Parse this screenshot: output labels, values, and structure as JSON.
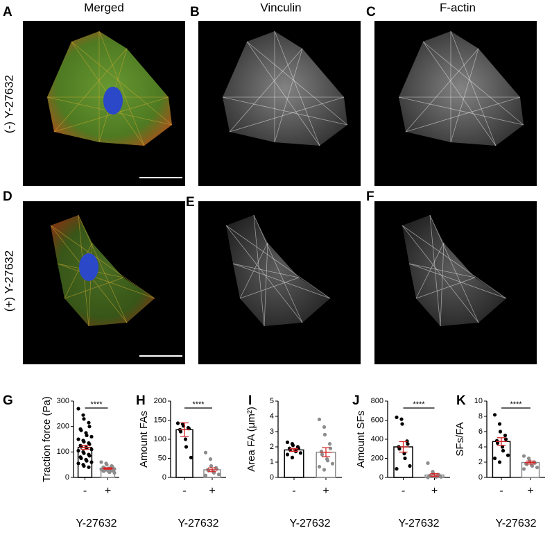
{
  "panels": {
    "letters": [
      "A",
      "B",
      "C",
      "D",
      "E",
      "F",
      "G",
      "H",
      "I",
      "J",
      "K"
    ],
    "columns": [
      "Merged",
      "Vinculin",
      "F-actin"
    ],
    "rows": [
      "(-) Y-27632",
      "(+) Y-27632"
    ]
  },
  "chart_data": [
    {
      "type": "bar",
      "ylabel": "Traction force (Pa)",
      "xlabel": "Y-27632",
      "categories": [
        "-",
        "+"
      ],
      "values": [
        118,
        35
      ],
      "error": [
        8,
        3
      ],
      "annotation": "****",
      "points": [
        [
          270,
          245,
          230,
          215,
          200,
          190,
          185,
          175,
          165,
          160,
          150,
          145,
          140,
          135,
          130,
          125,
          120,
          118,
          115,
          110,
          105,
          100,
          95,
          90,
          85,
          80,
          75,
          70,
          65,
          60,
          55,
          50,
          45,
          40
        ],
        [
          60,
          55,
          50,
          45,
          42,
          40,
          38,
          36,
          35,
          33,
          32,
          30,
          30,
          28,
          27,
          25,
          25,
          22,
          20,
          18
        ]
      ],
      "colors": [
        "#000000",
        "#8c8c8c"
      ],
      "error_color": "#d62728",
      "ylim": [
        0,
        300
      ],
      "yticks": [
        0,
        100,
        200,
        300
      ]
    },
    {
      "type": "bar",
      "ylabel": "Amount FAs",
      "xlabel": "Y-27632",
      "categories": [
        "-",
        "+"
      ],
      "values": [
        125,
        20
      ],
      "error": [
        18,
        5
      ],
      "annotation": "****",
      "points": [
        [
          142,
          140,
          135,
          130,
          128,
          125,
          120,
          100,
          80,
          52
        ],
        [
          65,
          48,
          30,
          25,
          22,
          20,
          18,
          15,
          12,
          8,
          5
        ]
      ],
      "colors": [
        "#000000",
        "#8c8c8c"
      ],
      "error_color": "#d62728",
      "ylim": [
        0,
        200
      ],
      "yticks": [
        0,
        50,
        100,
        150,
        200
      ]
    },
    {
      "type": "bar",
      "ylabel": "Area FA (μm²)",
      "xlabel": "Y-27632",
      "categories": [
        "-",
        "+"
      ],
      "values": [
        1.8,
        1.65
      ],
      "error": [
        0.1,
        0.3
      ],
      "points": [
        [
          2.3,
          2.2,
          2.1,
          2.0,
          1.9,
          1.9,
          1.8,
          1.8,
          1.7,
          1.6,
          1.5,
          1.3
        ],
        [
          3.8,
          3.3,
          2.8,
          2.2,
          1.9,
          1.7,
          1.5,
          1.2,
          1.1,
          0.9,
          0.7,
          0.5
        ]
      ],
      "colors": [
        "#000000",
        "#8c8c8c"
      ],
      "error_color": "#d62728",
      "ylim": [
        0,
        5
      ],
      "yticks": [
        0,
        1,
        2,
        3,
        4,
        5
      ]
    },
    {
      "type": "bar",
      "ylabel": "Amount SFs",
      "xlabel": "Y-27632",
      "categories": [
        "-",
        "+"
      ],
      "values": [
        320,
        25
      ],
      "error": [
        55,
        15
      ],
      "annotation": "****",
      "points": [
        [
          630,
          610,
          560,
          380,
          350,
          320,
          300,
          250,
          200,
          120,
          90
        ],
        [
          150,
          60,
          40,
          30,
          25,
          20,
          15,
          10,
          5,
          5,
          0
        ]
      ],
      "colors": [
        "#000000",
        "#8c8c8c"
      ],
      "error_color": "#d62728",
      "ylim": [
        0,
        800
      ],
      "yticks": [
        0,
        200,
        400,
        600,
        800
      ]
    },
    {
      "type": "bar",
      "ylabel": "SFs/FA",
      "xlabel": "Y-27632",
      "categories": [
        "-",
        "+"
      ],
      "values": [
        4.7,
        1.95
      ],
      "error": [
        0.5,
        0.2
      ],
      "annotation": "****",
      "points": [
        [
          8.2,
          7.0,
          6.0,
          5.5,
          5.0,
          4.8,
          4.5,
          4.0,
          3.5,
          2.9,
          2.5,
          2.0
        ],
        [
          2.8,
          2.5,
          2.2,
          2.0,
          1.9,
          1.8,
          1.7,
          1.6,
          1.5,
          1.3,
          1.1
        ]
      ],
      "colors": [
        "#000000",
        "#8c8c8c"
      ],
      "error_color": "#d62728",
      "ylim": [
        0,
        10
      ],
      "yticks": [
        0,
        2,
        4,
        6,
        8,
        10
      ]
    }
  ]
}
